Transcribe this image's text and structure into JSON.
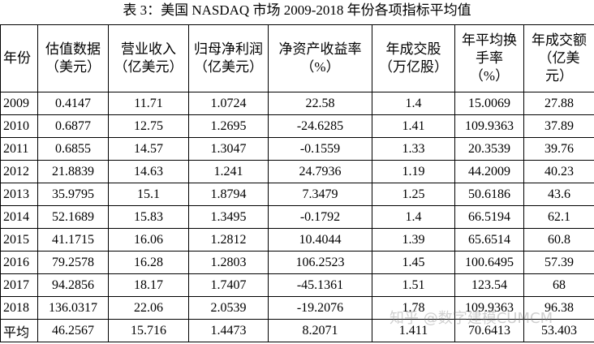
{
  "title": "表 3：美国 NASDAQ 市场 2009-2018 年份各项指标平均值",
  "table": {
    "header": [
      [
        "年份"
      ],
      [
        "估值数据",
        "（美元）"
      ],
      [
        "营业收入",
        "（亿美元）"
      ],
      [
        "归母净利润",
        "（亿美元）"
      ],
      [
        "净资产收益率",
        "（%）"
      ],
      [
        "年成交股",
        "（万亿股）"
      ],
      [
        "年平均换",
        "手率",
        "（%）"
      ],
      [
        "年成交额",
        "（亿美",
        "元）"
      ]
    ],
    "rows": [
      [
        "2009",
        "0.4147",
        "11.71",
        "1.0724",
        "22.58",
        "1.4",
        "15.0069",
        "27.88"
      ],
      [
        "2010",
        "0.6877",
        "12.75",
        "1.2695",
        "-24.6285",
        "1.41",
        "109.9363",
        "37.89"
      ],
      [
        "2011",
        "0.6855",
        "14.57",
        "1.3047",
        "-0.1559",
        "1.33",
        "20.3539",
        "39.76"
      ],
      [
        "2012",
        "21.8839",
        "14.63",
        "1.241",
        "24.7936",
        "1.19",
        "44.2009",
        "40.23"
      ],
      [
        "2013",
        "35.9795",
        "15.1",
        "1.8794",
        "7.3479",
        "1.25",
        "50.6186",
        "43.6"
      ],
      [
        "2014",
        "52.1689",
        "15.83",
        "1.3495",
        "-0.1792",
        "1.4",
        "66.5194",
        "62.1"
      ],
      [
        "2015",
        "41.1715",
        "16.06",
        "1.2812",
        "10.4044",
        "1.39",
        "65.6514",
        "60.8"
      ],
      [
        "2016",
        "79.2578",
        "16.28",
        "1.2803",
        "106.2523",
        "1.45",
        "100.6495",
        "57.39"
      ],
      [
        "2017",
        "94.2856",
        "18.17",
        "1.7407",
        "-45.1361",
        "1.51",
        "123.54",
        "68"
      ],
      [
        "2018",
        "136.0317",
        "22.06",
        "2.0539",
        "-19.2076",
        "1.78",
        "109.9363",
        "96.38"
      ],
      [
        "平均",
        "46.2567",
        "15.716",
        "1.4473",
        "8.2071",
        "1.411",
        "70.6413",
        "53.403"
      ]
    ]
  },
  "watermark": "知乎 @数字建模CUMCM"
}
